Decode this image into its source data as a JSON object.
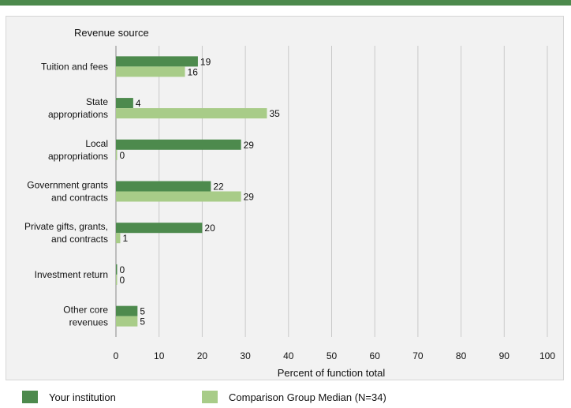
{
  "colors": {
    "top_bar": "#4d8a4d",
    "your_institution": "#4d8a4d",
    "comparison": "#a8cc88",
    "grid": "#c9c9c9",
    "axis": "#888888"
  },
  "chart_data": {
    "type": "bar",
    "orientation": "horizontal",
    "title": "",
    "category_axis_title": "Revenue source",
    "xlabel": "Percent of function total",
    "xlim": [
      0,
      100
    ],
    "x_ticks": [
      "0",
      "10",
      "20",
      "30",
      "40",
      "50",
      "60",
      "70",
      "80",
      "90",
      "100"
    ],
    "grid": true,
    "legend_position": "bottom",
    "categories": [
      [
        "Tuition and fees"
      ],
      [
        "State",
        "appropriations"
      ],
      [
        "Local",
        "appropriations"
      ],
      [
        "Government grants",
        "and contracts"
      ],
      [
        "Private gifts, grants,",
        "and contracts"
      ],
      [
        "Investment return"
      ],
      [
        "Other core",
        "revenues"
      ]
    ],
    "series": [
      {
        "name": "Your institution",
        "values": [
          19,
          4,
          29,
          22,
          20,
          0,
          5
        ]
      },
      {
        "name": "Comparison Group Median (N=34)",
        "values": [
          16,
          35,
          0,
          29,
          1,
          0,
          5
        ]
      }
    ]
  }
}
